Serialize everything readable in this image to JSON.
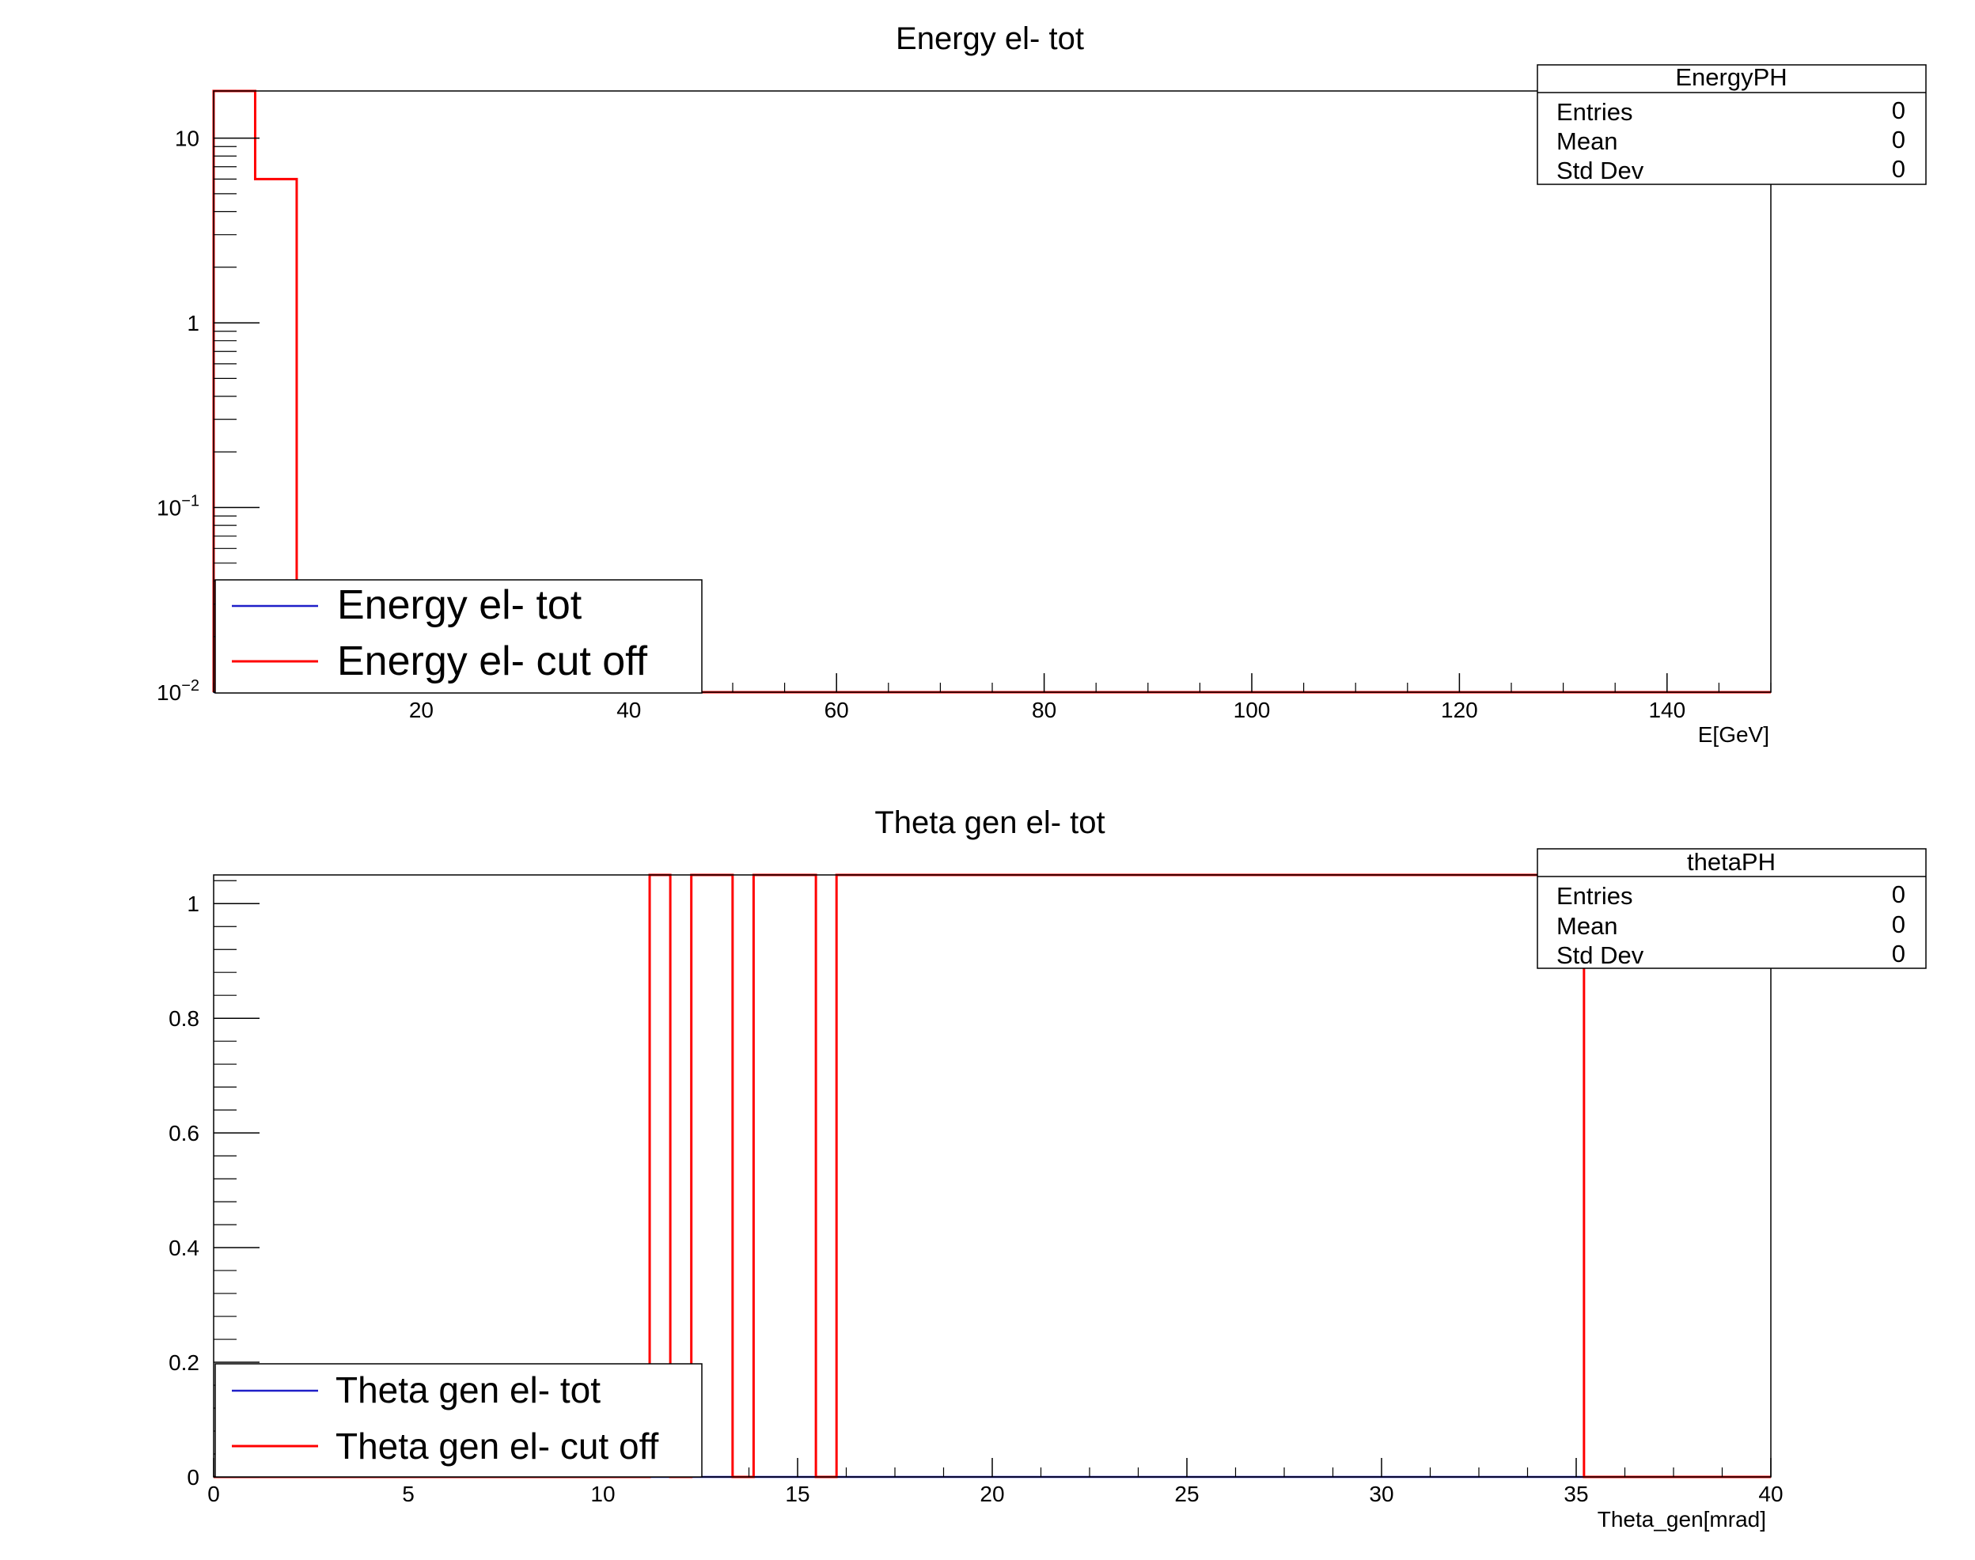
{
  "colors": {
    "tot": "#1f1fc8",
    "cut": "#ff0000",
    "frame": "#000000"
  },
  "chart_data": [
    {
      "type": "step-histogram",
      "title": "Energy el- tot",
      "xlabel": "E[GeV]",
      "ylabel": "",
      "y_scale": "log",
      "xlim": [
        0,
        150
      ],
      "ylim": [
        0.01,
        18
      ],
      "x_ticks": [
        20,
        40,
        60,
        80,
        100,
        120,
        140
      ],
      "x_tick_labels": [
        "20",
        "40",
        "60",
        "80",
        "100",
        "120",
        "140"
      ],
      "y_ticks": [
        0.01,
        0.1,
        1,
        10
      ],
      "y_tick_labels": [
        {
          "base": "10",
          "exp": "−2"
        },
        {
          "base": "10",
          "exp": "−1"
        },
        {
          "base": "1",
          "exp": ""
        },
        {
          "base": "10",
          "exp": ""
        }
      ],
      "grid": false,
      "legend_position": "bottom-left",
      "stats_box": {
        "name": "EnergyPH",
        "position": "top-right",
        "rows": [
          {
            "label": "Entries",
            "value": "0"
          },
          {
            "label": "Mean",
            "value": "0"
          },
          {
            "label": "Std Dev",
            "value": "0"
          }
        ]
      },
      "series": [
        {
          "name": "Energy el- tot",
          "color_key": "tot",
          "bin_edges": [
            0,
            150
          ],
          "counts": [
            0.01
          ]
        },
        {
          "name": "Energy el- cut off",
          "color_key": "cut",
          "bin_edges": [
            0,
            4,
            8,
            150
          ],
          "counts": [
            18,
            6,
            0.01
          ]
        }
      ]
    },
    {
      "type": "step-histogram",
      "title": "Theta gen el- tot",
      "xlabel": "Theta_gen[mrad]",
      "ylabel": "",
      "y_scale": "linear",
      "xlim": [
        0,
        40
      ],
      "ylim": [
        0,
        1.05
      ],
      "x_ticks": [
        0,
        5,
        10,
        15,
        20,
        25,
        30,
        35,
        40
      ],
      "x_tick_labels": [
        "0",
        "5",
        "10",
        "15",
        "20",
        "25",
        "30",
        "35",
        "40"
      ],
      "y_ticks": [
        0,
        0.2,
        0.4,
        0.6,
        0.8,
        1
      ],
      "y_tick_labels": [
        {
          "base": "0",
          "exp": ""
        },
        {
          "base": "0.2",
          "exp": ""
        },
        {
          "base": "0.4",
          "exp": ""
        },
        {
          "base": "0.6",
          "exp": ""
        },
        {
          "base": "0.8",
          "exp": ""
        },
        {
          "base": "1",
          "exp": ""
        }
      ],
      "grid": false,
      "legend_position": "bottom-left",
      "stats_box": {
        "name": "thetaPH",
        "position": "top-right",
        "rows": [
          {
            "label": "Entries",
            "value": "0"
          },
          {
            "label": "Mean",
            "value": "0"
          },
          {
            "label": "Std Dev",
            "value": "0"
          }
        ]
      },
      "series": [
        {
          "name": "Theta gen el- tot",
          "color_key": "tot",
          "bin_edges": [
            0,
            40
          ],
          "counts": [
            0
          ]
        },
        {
          "name": "Theta gen el- cut off",
          "color_key": "cut",
          "bin_edges": [
            0,
            11.2,
            11.73,
            12.27,
            13.33,
            13.87,
            15.47,
            16.0,
            35.2,
            40
          ],
          "counts": [
            0,
            1.05,
            0,
            1.05,
            0,
            1.05,
            0,
            1.05,
            0
          ]
        }
      ]
    }
  ]
}
